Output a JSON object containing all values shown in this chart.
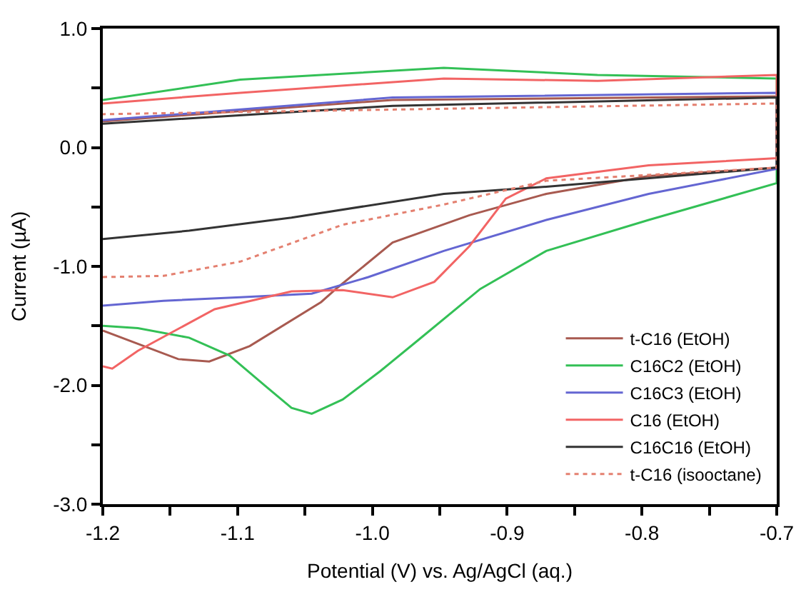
{
  "chart_data": {
    "type": "line",
    "xlabel": "Potential (V) vs. Ag/AgCl (aq.)",
    "ylabel": "Current (µA)",
    "xlim": [
      -1.2,
      -0.7
    ],
    "ylim": [
      -3,
      1
    ],
    "xticks": [
      -1.2,
      {
        "value": -1.15,
        "label": null
      },
      -1.1,
      {
        "value": -1.05,
        "label": null
      },
      {
        "value": -1.0,
        "label": "-1.0"
      },
      {
        "value": -0.95,
        "label": null
      },
      -0.9,
      {
        "value": -0.85,
        "label": null
      },
      -0.8,
      {
        "value": -0.75,
        "label": null
      },
      -0.7
    ],
    "yticks": [
      {
        "value": 1,
        "label": "1.0"
      },
      {
        "value": 0.5,
        "label": null
      },
      {
        "value": 0,
        "label": "0.0"
      },
      {
        "value": -0.5,
        "label": null
      },
      {
        "value": -1,
        "label": "-1.0"
      },
      {
        "value": -1.5,
        "label": null
      },
      {
        "value": -2,
        "label": "-2.0"
      },
      {
        "value": -2.5,
        "label": null
      },
      {
        "value": -3,
        "label": "-3.0"
      }
    ],
    "legend": "bottom right",
    "marker": "none",
    "series": [
      {
        "name": "t-C16 (EtOH)",
        "color": "#a85a50",
        "line_style": "solid",
        "x": [
          -1.2,
          -1.144,
          -1.121,
          -1.091,
          -1.038,
          -1.026,
          -0.985,
          -0.928,
          -0.871,
          -0.795,
          -0.7,
          -0.7,
          -0.985,
          -1.2
        ],
        "values": [
          -1.54,
          -1.78,
          -1.8,
          -1.67,
          -1.3,
          -1.18,
          -0.8,
          -0.57,
          -0.39,
          -0.24,
          -0.17,
          0.43,
          0.4,
          0.22
        ]
      },
      {
        "name": "C16C2 (EtOH)",
        "color": "#33c056",
        "line_style": "solid",
        "x": [
          -1.2,
          -1.174,
          -1.136,
          -1.106,
          -1.079,
          -1.06,
          -1.045,
          -1.022,
          -0.994,
          -0.966,
          -0.92,
          -0.871,
          -0.795,
          -0.7,
          -0.7,
          -0.833,
          -0.947,
          -1.098,
          -1.2
        ],
        "values": [
          -1.5,
          -1.52,
          -1.6,
          -1.75,
          -2.01,
          -2.19,
          -2.24,
          -2.12,
          -1.88,
          -1.62,
          -1.19,
          -0.87,
          -0.61,
          -0.3,
          0.58,
          0.61,
          0.67,
          0.57,
          0.4
        ]
      },
      {
        "name": "C16C3 (EtOH)",
        "color": "#6466d2",
        "line_style": "solid",
        "x": [
          -1.2,
          -1.155,
          -1.098,
          -1.045,
          -1.003,
          -0.947,
          -0.871,
          -0.795,
          -0.7,
          -0.7,
          -0.985,
          -1.2
        ],
        "values": [
          -1.33,
          -1.29,
          -1.26,
          -1.23,
          -1.09,
          -0.87,
          -0.61,
          -0.39,
          -0.18,
          0.46,
          0.42,
          0.23
        ]
      },
      {
        "name": "C16 (EtOH)",
        "color": "#f26464",
        "line_style": "solid",
        "x": [
          -1.2,
          -1.193,
          -1.174,
          -1.117,
          -1.06,
          -1.022,
          -0.985,
          -0.954,
          -0.928,
          -0.901,
          -0.871,
          -0.795,
          -0.7,
          -0.7,
          -0.833,
          -0.947,
          -1.098,
          -1.2
        ],
        "values": [
          -1.84,
          -1.86,
          -1.71,
          -1.36,
          -1.21,
          -1.2,
          -1.26,
          -1.13,
          -0.83,
          -0.43,
          -0.26,
          -0.15,
          -0.09,
          0.61,
          0.56,
          0.58,
          0.46,
          0.37
        ]
      },
      {
        "name": "C16C16 (EtOH)",
        "color": "#333333",
        "line_style": "solid",
        "x": [
          -1.2,
          -1.136,
          -1.06,
          -0.947,
          -0.871,
          -0.7,
          -0.7,
          -0.985,
          -1.2
        ],
        "values": [
          -0.77,
          -0.7,
          -0.59,
          -0.39,
          -0.33,
          -0.17,
          0.42,
          0.35,
          0.2
        ]
      },
      {
        "name": "t-C16 (isooctane)",
        "color": "#e48070",
        "line_style": "dotted",
        "x": [
          -1.2,
          -1.155,
          -1.098,
          -1.022,
          -0.947,
          -0.871,
          -0.7,
          -0.7,
          -1.2
        ],
        "values": [
          -1.09,
          -1.08,
          -0.96,
          -0.65,
          -0.48,
          -0.28,
          -0.17,
          0.37,
          0.28
        ]
      }
    ]
  }
}
